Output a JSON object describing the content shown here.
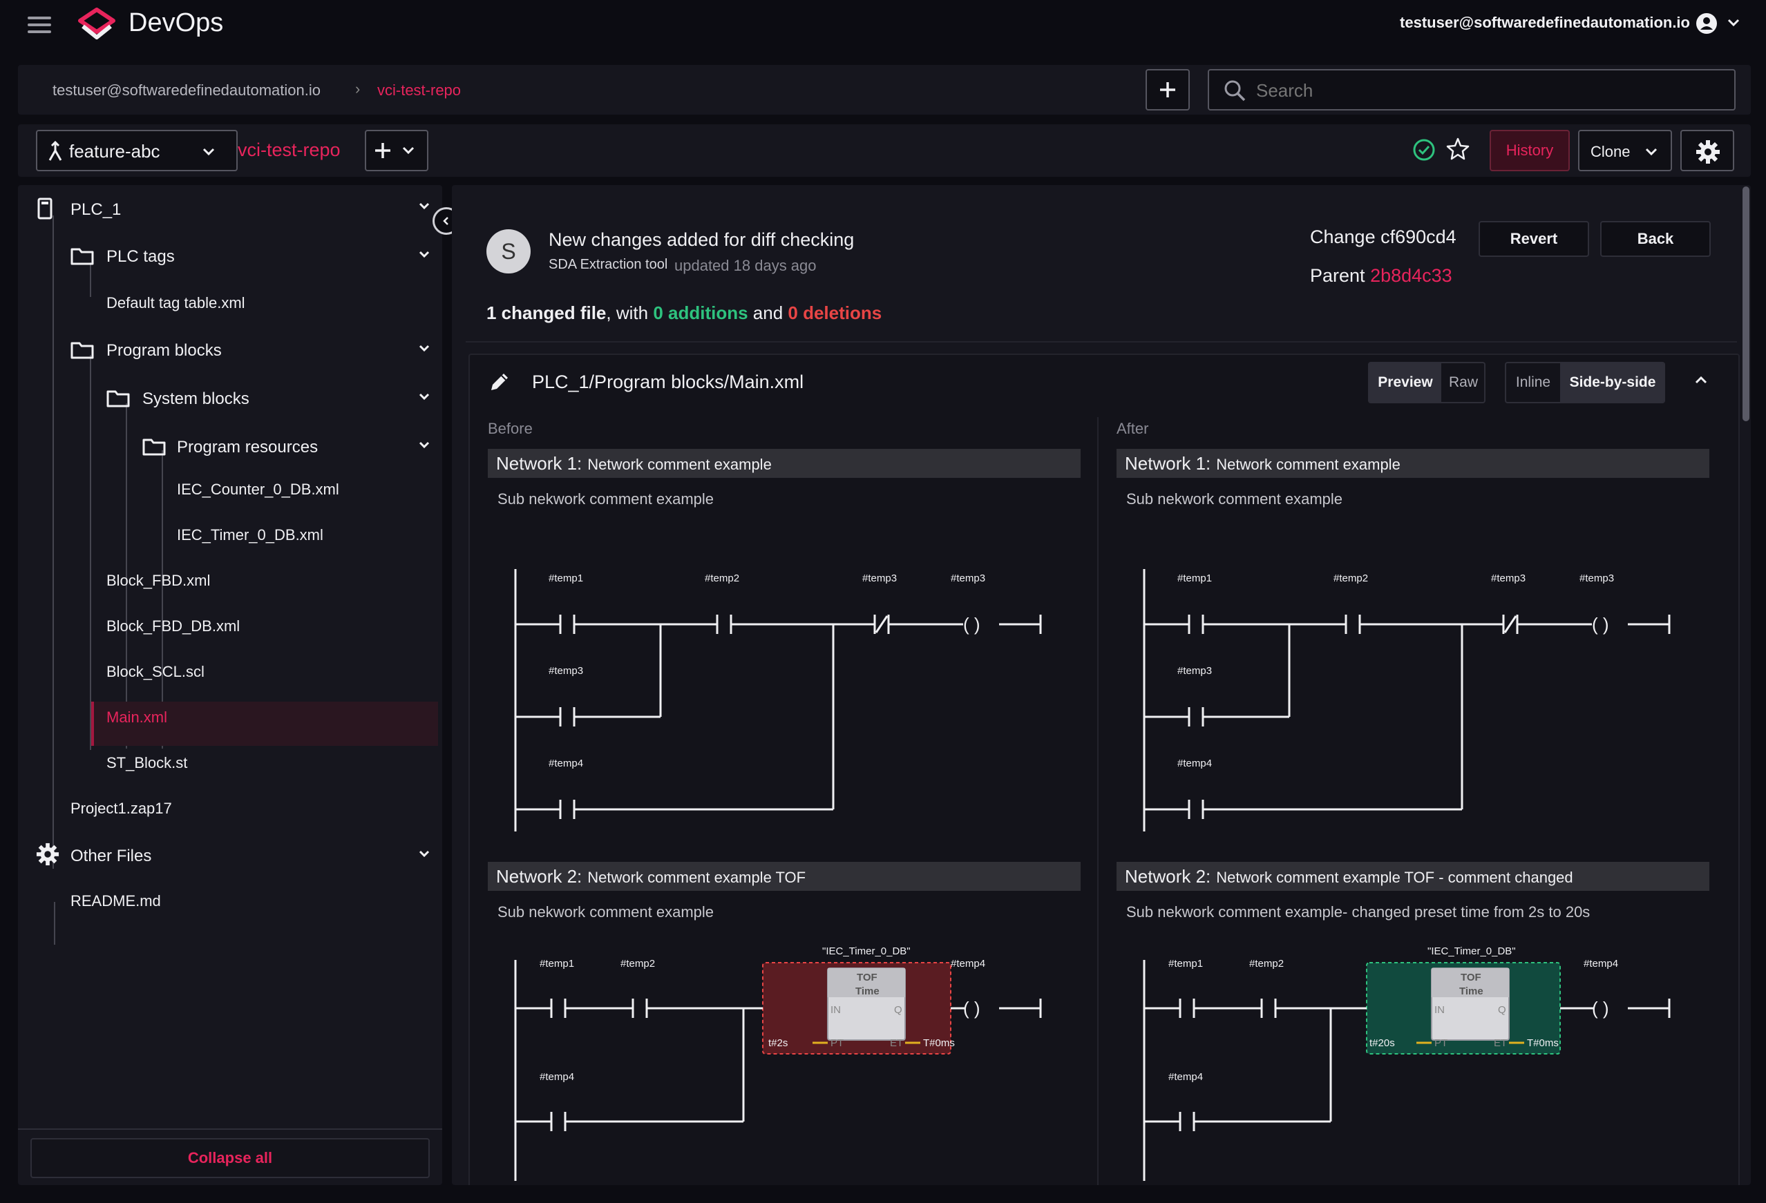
{
  "app": {
    "title": "DevOps",
    "user_email": "testuser@softwaredefinedautomation.io"
  },
  "breadcrumb": {
    "user": "testuser@softwaredefinedautomation.io",
    "separator": "›",
    "repo": "vci-test-repo"
  },
  "search": {
    "placeholder": "Search"
  },
  "toolbar": {
    "branch": "feature-abc",
    "repo": "vci-test-repo",
    "history_label": "History",
    "clone_label": "Clone"
  },
  "sidebar": {
    "items": [
      {
        "label": "PLC_1"
      },
      {
        "label": "PLC tags"
      },
      {
        "label": "Default tag table.xml"
      },
      {
        "label": "Program blocks"
      },
      {
        "label": "System blocks"
      },
      {
        "label": "Program resources"
      },
      {
        "label": "IEC_Counter_0_DB.xml"
      },
      {
        "label": "IEC_Timer_0_DB.xml"
      },
      {
        "label": "Block_FBD.xml"
      },
      {
        "label": "Block_FBD_DB.xml"
      },
      {
        "label": "Block_SCL.scl"
      },
      {
        "label": "Main.xml"
      },
      {
        "label": "ST_Block.st"
      },
      {
        "label": "Project1.zap17"
      },
      {
        "label": "Other Files"
      },
      {
        "label": "README.md"
      }
    ],
    "collapse_label": "Collapse all"
  },
  "commit": {
    "avatar_letter": "S",
    "title": "New changes added for diff checking",
    "author": "SDA Extraction tool",
    "time": "updated 18 days ago",
    "change_label": "Change cf690cd4",
    "parent_prefix": "Parent ",
    "parent_hash": "2b8d4c33",
    "revert_label": "Revert",
    "back_label": "Back"
  },
  "summary": {
    "files": "1 changed file",
    "with": ", with ",
    "additions": "0 additions",
    "and": " and ",
    "deletions": "0 deletions"
  },
  "file": {
    "path": "PLC_1/Program blocks/Main.xml",
    "view_preview": "Preview",
    "view_raw": "Raw",
    "view_inline": "Inline",
    "view_side": "Side-by-side"
  },
  "diff": {
    "before_label": "Before",
    "after_label": "After",
    "before": {
      "n1_title": "Network 1:",
      "n1_comment": "Network comment example",
      "n1_sub": "Sub nekwork comment example",
      "n2_title": "Network 2:",
      "n2_comment": "Network comment example TOF",
      "n2_sub": "Sub nekwork comment example",
      "timer_pt": "t#2s"
    },
    "after": {
      "n1_title": "Network 1:",
      "n1_comment": "Network comment example",
      "n1_sub": "Sub nekwork comment example",
      "n2_title": "Network 2:",
      "n2_comment": "Network comment example TOF - comment changed",
      "n2_sub": "Sub nekwork comment example- changed preset time from 2s to 20s",
      "timer_pt": "t#20s"
    },
    "ladder": {
      "n1_temp1": "#temp1",
      "n1_temp2": "#temp2",
      "n1_temp3a": "#temp3",
      "n1_temp3b": "#temp3",
      "n1_temp3c": "#temp3",
      "n1_temp4": "#temp4",
      "n2_temp1": "#temp1",
      "n2_temp2": "#temp2",
      "n2_temp4a": "#temp4",
      "n2_temp4b": "#temp4",
      "timer_db": "\"IEC_Timer_0_DB\"",
      "timer_type": "TOF",
      "timer_sub": "Time",
      "pin_in": "IN",
      "pin_pt": "PT",
      "pin_q": "Q",
      "pin_et": "ET",
      "et_value": "T#0ms",
      "coil": "( )"
    }
  },
  "colors": {
    "accent": "#e8245c",
    "addition": "#2ec27e",
    "deletion": "#e84545",
    "removed_block": "#5a1c22",
    "added_block": "#114a3e"
  }
}
